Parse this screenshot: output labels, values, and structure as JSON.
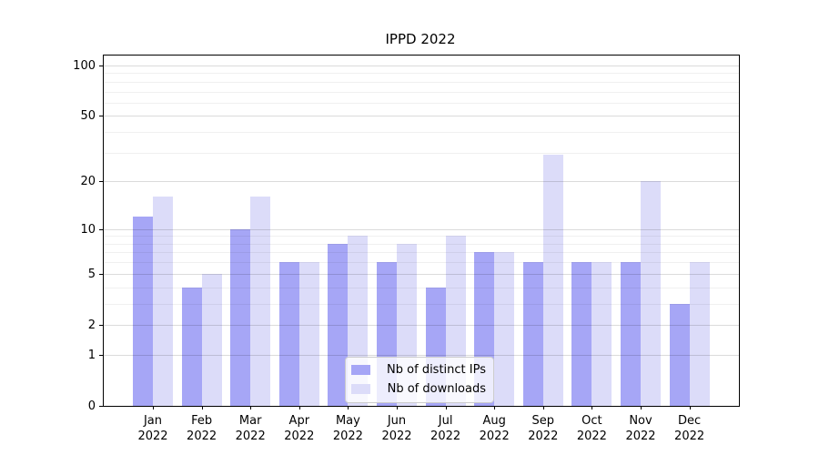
{
  "title": "IPPD 2022",
  "chart_data": {
    "type": "bar",
    "title": "IPPD 2022",
    "x": {
      "categories": [
        "Jan",
        "Feb",
        "Mar",
        "Apr",
        "May",
        "Jun",
        "Jul",
        "Aug",
        "Sep",
        "Oct",
        "Nov",
        "Dec"
      ],
      "year": "2022"
    },
    "series": [
      {
        "name": "Nb of distinct IPs",
        "color": "#a6a6f6",
        "values": [
          12,
          4,
          10,
          6,
          8,
          6,
          4,
          7,
          6,
          6,
          6,
          3
        ]
      },
      {
        "name": "Nb of downloads",
        "color": "#dcdcf9",
        "values": [
          16,
          5,
          16,
          6,
          9,
          8,
          9,
          7,
          29,
          6,
          20,
          6
        ]
      }
    ],
    "y_axis": {
      "scale": "log1p",
      "ticks": [
        0,
        1,
        2,
        5,
        10,
        20,
        50,
        100
      ],
      "minor_gridlines": [
        3,
        4,
        6,
        7,
        8,
        9,
        30,
        40,
        60,
        70,
        80,
        90
      ],
      "top_value": 110
    },
    "grid": true,
    "legend": {
      "position": "lower center",
      "items": [
        "Nb of distinct IPs",
        "Nb of downloads"
      ]
    }
  }
}
